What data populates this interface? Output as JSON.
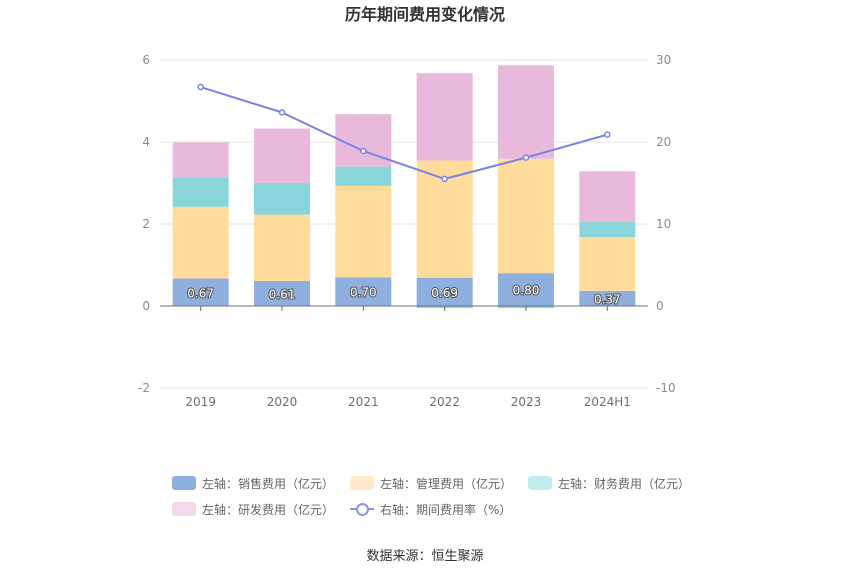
{
  "chart_data": {
    "type": "bar",
    "title": "历年期间费用变化情况",
    "categories": [
      "2019",
      "2020",
      "2021",
      "2022",
      "2023",
      "2024H1"
    ],
    "left_axis": {
      "ylim": [
        -2,
        6
      ],
      "ticks": [
        "-2",
        "0",
        "2",
        "4",
        "6"
      ]
    },
    "right_axis": {
      "ylim": [
        -10,
        30
      ],
      "ticks": [
        "-10",
        "0",
        "10",
        "20",
        "30"
      ]
    },
    "grid": true,
    "legend_position": "bottom",
    "series": [
      {
        "name": "左轴：销售费用（亿元）",
        "kind": "stacked-bar",
        "axis": "left",
        "color": "#8fb0df",
        "values": [
          0.67,
          0.61,
          0.7,
          0.69,
          0.8,
          0.37
        ],
        "labels": [
          "0.67",
          "0.61",
          "0.70",
          "0.69",
          "0.80",
          "0.37"
        ]
      },
      {
        "name": "左轴：管理费用（亿元）",
        "kind": "stacked-bar",
        "axis": "left",
        "color": "#ffdb9c",
        "values": [
          1.75,
          1.62,
          2.23,
          2.86,
          2.79,
          1.31
        ]
      },
      {
        "name": "左轴：财务费用（亿元）",
        "kind": "stacked-bar",
        "axis": "left",
        "color": "#88d6da",
        "values": [
          0.72,
          0.77,
          0.47,
          -0.05,
          -0.05,
          0.37
        ]
      },
      {
        "name": "左轴：研发费用（亿元）",
        "kind": "stacked-bar",
        "axis": "left",
        "color": "#e8b9da",
        "values": [
          0.85,
          1.33,
          1.28,
          2.13,
          2.28,
          1.24
        ]
      },
      {
        "name": "右轴：期间费用率（%）",
        "kind": "line",
        "axis": "right",
        "color": "#7b83e6",
        "values": [
          26.7,
          23.6,
          18.9,
          15.5,
          18.1,
          20.9
        ]
      }
    ]
  },
  "legend_colors": [
    "#8fb0df",
    "#ffeacb",
    "#c2ecee",
    "#f3d9ea"
  ],
  "source": "数据来源：恒生聚源"
}
